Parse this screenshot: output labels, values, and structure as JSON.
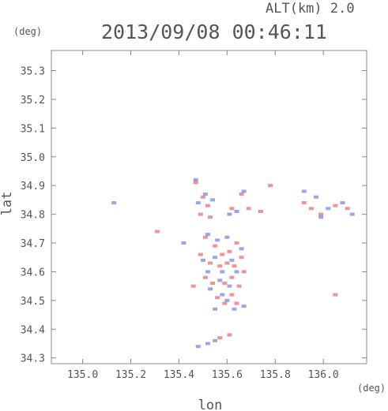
{
  "header": {
    "alt_label": "ALT(km) 2.0",
    "timestamp": "2013/09/08 00:46:11"
  },
  "chart_data": {
    "type": "scatter",
    "title": "2013/09/08 00:46:11",
    "xlabel": "lon",
    "ylabel": "lat",
    "x_unit": "(deg)",
    "y_unit": "(deg)",
    "xlim": [
      134.87,
      136.18
    ],
    "ylim": [
      34.28,
      35.37
    ],
    "xticks": [
      "135.0",
      "135.2",
      "135.4",
      "135.6",
      "135.8",
      "136.0"
    ],
    "yticks": [
      "34.3",
      "34.4",
      "34.5",
      "34.6",
      "34.7",
      "34.8",
      "34.9",
      "35.0",
      "35.1",
      "35.2",
      "35.3"
    ],
    "grid": false,
    "colors": {
      "positive": "#e8393f",
      "negative": "#4a5bd9",
      "axis": "#888888",
      "text": "#555555"
    },
    "series": [
      {
        "points": [
          [
            135.47,
            34.91
          ],
          [
            135.5,
            34.86
          ],
          [
            135.52,
            34.83
          ],
          [
            135.49,
            34.8
          ],
          [
            135.53,
            34.79
          ],
          [
            135.62,
            34.82
          ],
          [
            135.66,
            34.87
          ],
          [
            135.69,
            34.82
          ],
          [
            135.74,
            34.81
          ],
          [
            135.78,
            34.9
          ],
          [
            135.92,
            34.84
          ],
          [
            135.95,
            34.82
          ],
          [
            135.99,
            34.8
          ],
          [
            136.05,
            34.83
          ],
          [
            136.1,
            34.82
          ],
          [
            135.31,
            34.74
          ],
          [
            135.51,
            34.72
          ],
          [
            135.55,
            34.69
          ],
          [
            135.58,
            34.66
          ],
          [
            135.61,
            34.67
          ],
          [
            135.64,
            34.7
          ],
          [
            135.49,
            34.66
          ],
          [
            135.53,
            34.63
          ],
          [
            135.57,
            34.62
          ],
          [
            135.6,
            34.63
          ],
          [
            135.63,
            34.62
          ],
          [
            135.66,
            34.65
          ],
          [
            135.51,
            34.58
          ],
          [
            135.54,
            34.56
          ],
          [
            135.59,
            34.56
          ],
          [
            135.62,
            34.58
          ],
          [
            135.65,
            34.55
          ],
          [
            135.56,
            34.51
          ],
          [
            135.59,
            34.49
          ],
          [
            135.62,
            34.52
          ],
          [
            135.64,
            34.49
          ],
          [
            136.05,
            34.52
          ],
          [
            135.61,
            34.38
          ],
          [
            135.57,
            34.37
          ],
          [
            135.46,
            34.55
          ],
          [
            135.67,
            34.6
          ]
        ],
        "color": "#e8393f"
      },
      {
        "points": [
          [
            135.13,
            34.84
          ],
          [
            135.47,
            34.92
          ],
          [
            135.51,
            34.87
          ],
          [
            135.48,
            34.84
          ],
          [
            135.54,
            34.85
          ],
          [
            135.61,
            34.8
          ],
          [
            135.64,
            34.81
          ],
          [
            135.67,
            34.88
          ],
          [
            135.92,
            34.88
          ],
          [
            135.97,
            34.86
          ],
          [
            136.02,
            34.82
          ],
          [
            136.08,
            34.84
          ],
          [
            136.12,
            34.8
          ],
          [
            135.99,
            34.79
          ],
          [
            135.52,
            34.73
          ],
          [
            135.56,
            34.71
          ],
          [
            135.6,
            34.72
          ],
          [
            135.5,
            34.64
          ],
          [
            135.55,
            34.65
          ],
          [
            135.62,
            34.64
          ],
          [
            135.58,
            34.6
          ],
          [
            135.52,
            34.6
          ],
          [
            135.64,
            34.6
          ],
          [
            135.57,
            34.57
          ],
          [
            135.61,
            34.55
          ],
          [
            135.58,
            34.52
          ],
          [
            135.6,
            34.5
          ],
          [
            135.63,
            34.47
          ],
          [
            135.55,
            34.47
          ],
          [
            135.67,
            34.48
          ],
          [
            135.48,
            34.34
          ],
          [
            135.52,
            34.35
          ],
          [
            135.55,
            34.36
          ],
          [
            135.42,
            34.7
          ],
          [
            135.66,
            34.68
          ],
          [
            135.53,
            34.54
          ]
        ],
        "color": "#4a5bd9"
      }
    ]
  }
}
